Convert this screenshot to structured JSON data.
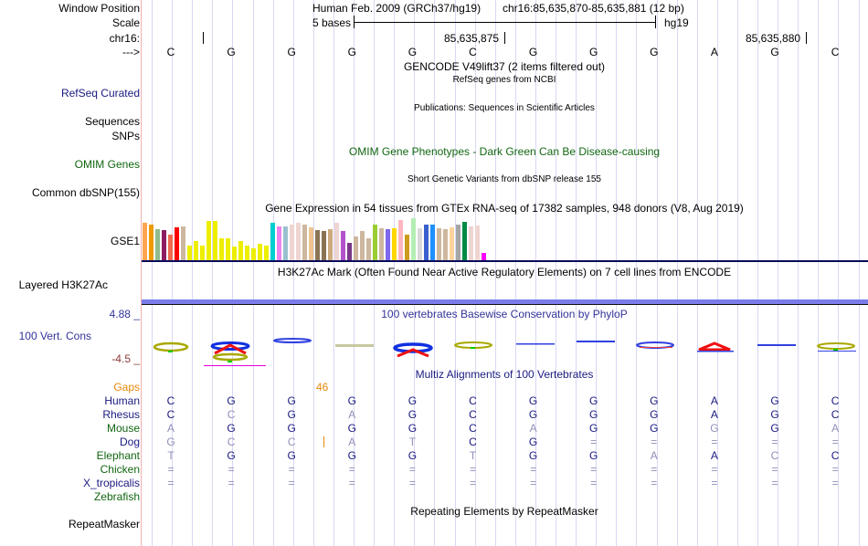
{
  "header": {
    "window_position_label": "Window Position",
    "scale_label": "Scale",
    "chrom_label": "chr16:",
    "strand_label": "--->",
    "assembly_title": "Human Feb. 2009 (GRCh37/hg19)",
    "position": "chr16:85,635,870-85,635,881 (12 bp)",
    "scale_text": "5 bases",
    "scale_db": "hg19",
    "ticks": [
      "85,635,875",
      "85,635,880"
    ],
    "bases": [
      "C",
      "G",
      "G",
      "G",
      "G",
      "C",
      "G",
      "G",
      "G",
      "A",
      "G",
      "C"
    ]
  },
  "tracks": {
    "gencode": {
      "title": "GENCODE V49lift37 (2 items filtered out)"
    },
    "refseq": {
      "label": "RefSeq Curated",
      "title": "RefSeq genes from NCBI"
    },
    "publications": {
      "label": "Sequences",
      "title": "Publications: Sequences in Scientific Articles"
    },
    "snps": {
      "label": "SNPs"
    },
    "omim": {
      "label": "OMIM Genes",
      "title": "OMIM Gene Phenotypes - Dark Green Can Be Disease-causing"
    },
    "dbsnp": {
      "label": "Common dbSNP(155)",
      "title": "Short Genetic Variants from dbSNP release 155"
    },
    "gtex": {
      "label": "GSE1",
      "title": "Gene Expression in 54 tissues from GTEx RNA-seq of 17382 samples, 948 donors (V8, Aug 2019)"
    },
    "h3k27ac": {
      "label": "Layered H3K27Ac",
      "title": "H3K27Ac Mark (Often Found Near Active Regulatory Elements) on 7 cell lines from ENCODE"
    },
    "cons": {
      "label": "100 Vert. Cons",
      "max": "4.88 _",
      "min": "-4.5 _",
      "title": "100 vertebrates Basewise Conservation by PhyloP"
    },
    "multiz": {
      "title": "Multiz Alignments of 100 Vertebrates",
      "gaps_label": "Gaps",
      "gaps_value": "46",
      "species": [
        {
          "name": "Human",
          "color": "#1a1a80",
          "bases": [
            "C",
            "G",
            "G",
            "G",
            "G",
            "C",
            "G",
            "G",
            "G",
            "A",
            "G",
            "C"
          ]
        },
        {
          "name": "Rhesus",
          "color": "#1a1a80",
          "bases": [
            "C",
            "C",
            "G",
            "A",
            "G",
            "C",
            "G",
            "G",
            "G",
            "A",
            "G",
            "C"
          ]
        },
        {
          "name": "Mouse",
          "color": "#116611",
          "bases": [
            "A",
            "G",
            "G",
            "G",
            "G",
            "C",
            "A",
            "G",
            "G",
            "G",
            "G",
            "A"
          ]
        },
        {
          "name": "Dog",
          "color": "#1a1a80",
          "bases": [
            "G",
            "C",
            "C",
            "A",
            "T",
            "C",
            "G",
            "=",
            "=",
            "=",
            "=",
            "="
          ]
        },
        {
          "name": "Elephant",
          "color": "#116611",
          "bases": [
            "T",
            "G",
            "G",
            "G",
            "G",
            "T",
            "G",
            "G",
            "A",
            "A",
            "C",
            "C"
          ]
        },
        {
          "name": "Chicken",
          "color": "#116611",
          "bases": [
            "=",
            "=",
            "=",
            "=",
            "=",
            "=",
            "=",
            "=",
            "=",
            "=",
            "=",
            "="
          ]
        },
        {
          "name": "X_tropicalis",
          "color": "#1a1a80",
          "bases": [
            "=",
            "=",
            "=",
            "=",
            "=",
            "=",
            "=",
            "=",
            "=",
            "=",
            "=",
            "="
          ]
        },
        {
          "name": "Zebrafish",
          "color": "#116611",
          "bases": []
        }
      ],
      "dim": [
        [
          0,
          0,
          0,
          0,
          0,
          0,
          0,
          0,
          0,
          0,
          0,
          0
        ],
        [
          0,
          1,
          0,
          1,
          0,
          0,
          0,
          0,
          0,
          0,
          0,
          0
        ],
        [
          1,
          0,
          0,
          0,
          0,
          0,
          1,
          0,
          0,
          1,
          0,
          1
        ],
        [
          1,
          1,
          1,
          1,
          1,
          0,
          0,
          1,
          1,
          1,
          1,
          1
        ],
        [
          1,
          0,
          0,
          0,
          0,
          1,
          0,
          0,
          1,
          0,
          1,
          0
        ],
        [
          1,
          1,
          1,
          1,
          1,
          1,
          1,
          1,
          1,
          1,
          1,
          1
        ],
        [
          1,
          1,
          1,
          1,
          1,
          1,
          1,
          1,
          1,
          1,
          1,
          1
        ],
        []
      ]
    },
    "repeatmasker": {
      "label": "RepeatMasker",
      "title": "Repeating Elements by RepeatMasker"
    }
  },
  "gtex_bars": {
    "values": [
      0.95,
      0.9,
      0.8,
      0.77,
      0.66,
      0.84,
      0.86,
      0.38,
      0.5,
      0.38,
      1.0,
      1.0,
      0.56,
      0.56,
      0.36,
      0.5,
      0.38,
      0.32,
      0.44,
      0.38,
      0.96,
      0.86,
      0.86,
      0.92,
      0.96,
      0.9,
      0.84,
      0.78,
      0.76,
      0.8,
      0.96,
      0.74,
      0.45,
      0.62,
      0.74,
      0.56,
      0.92,
      0.82,
      0.8,
      0.82,
      1.02,
      0.66,
      1.06,
      0.82,
      0.9,
      0.9,
      0.82,
      0.8,
      0.84,
      0.9,
      0.98,
      0.86,
      0.88,
      0.2
    ],
    "colors": [
      "#FFA54F",
      "#EE9A00",
      "#8FBC8F",
      "#8B1C62",
      "#EE6A50",
      "#FF0000",
      "#CDB79E",
      "#EEEE00",
      "#EEEE00",
      "#EEEE00",
      "#EEEE00",
      "#EEEE00",
      "#EEEE00",
      "#EEEE00",
      "#EEEE00",
      "#EEEE00",
      "#EEEE00",
      "#EEEE00",
      "#EEEE00",
      "#EEEE00",
      "#00CED1",
      "#EE82EE",
      "#9AC0CD",
      "#EED5D2",
      "#EED5D2",
      "#CDB79E",
      "#EEC591",
      "#8B7355",
      "#8B7355",
      "#CDAA7D",
      "#EED5D2",
      "#B452CD",
      "#7A378B",
      "#CDB79E",
      "#CDB79E",
      "#CDB79E",
      "#9ACD32",
      "#CDB79E",
      "#7B68EE",
      "#FFD700",
      "#FFB6C1",
      "#CD9B1D",
      "#B4EEB4",
      "#D9D9D9",
      "#3A5FCD",
      "#1E90FF",
      "#CDB79E",
      "#CDB79E",
      "#FFD39B",
      "#A6A6A6",
      "#008B45",
      "#EED5D2",
      "#EED5D2",
      "#FF00FF"
    ]
  }
}
